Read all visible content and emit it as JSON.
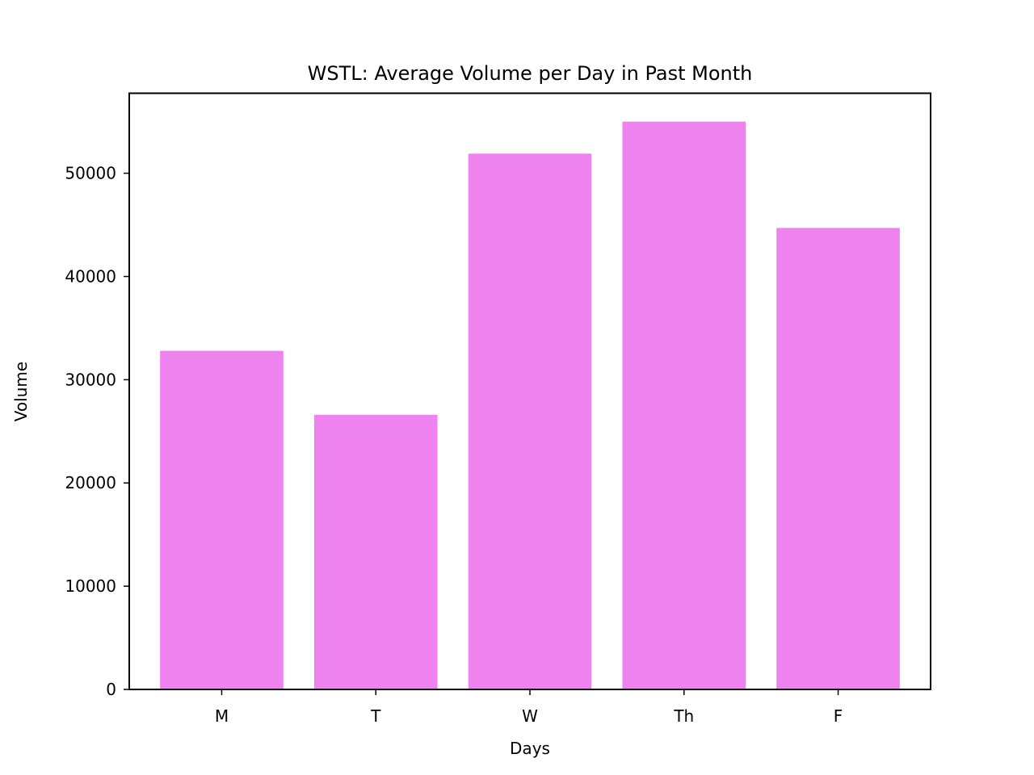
{
  "chart_data": {
    "type": "bar",
    "title": "WSTL: Average Volume per Day in Past Month",
    "xlabel": "Days",
    "ylabel": "Volume",
    "categories": [
      "M",
      "T",
      "W",
      "Th",
      "F"
    ],
    "values": [
      32800,
      26600,
      51900,
      55000,
      44700
    ],
    "ylim": [
      0,
      57750
    ],
    "yticks": [
      0,
      10000,
      20000,
      30000,
      40000,
      50000
    ],
    "bar_color": "#ee82ee",
    "grid": false,
    "legend": "none"
  }
}
